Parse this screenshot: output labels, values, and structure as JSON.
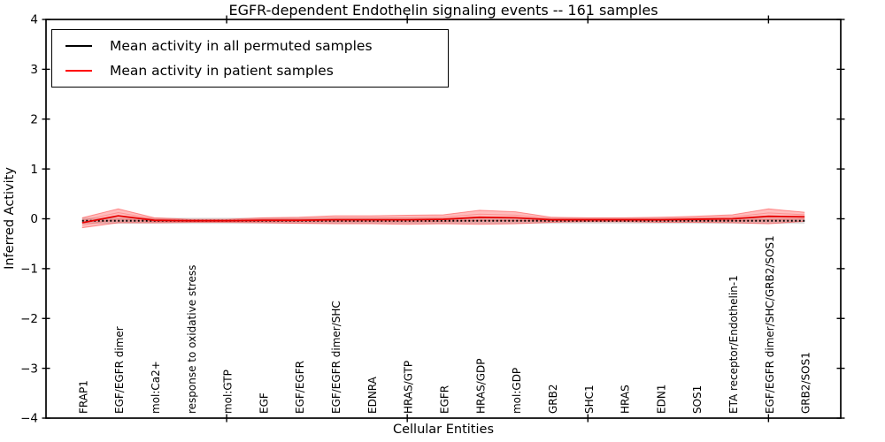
{
  "chart_data": {
    "type": "line",
    "title": "EGFR-dependent Endothelin signaling events -- 161 samples",
    "xlabel": "Cellular Entities",
    "ylabel": "Inferred Activity",
    "ylim": [
      -4,
      4
    ],
    "yticks": [
      -4,
      -3,
      -2,
      -1,
      0,
      1,
      2,
      3,
      4
    ],
    "xlim": [
      0,
      22
    ],
    "xticks": [
      5,
      10,
      15,
      20
    ],
    "grid": false,
    "legend_position": "upper left",
    "categories": [
      "FRAP1",
      "EGF/EGFR dimer",
      "mol:Ca2+",
      "response to oxidative stress",
      "mol:GTP",
      "EGF",
      "EGF/EGFR",
      "EGF/EGFR dimer/SHC",
      "EDNRA",
      "HRAS/GTP",
      "EGFR",
      "HRAS/GDP",
      "mol:GDP",
      "GRB2",
      "SHC1",
      "HRAS",
      "EDN1",
      "SOS1",
      "ETA receptor/Endothelin-1",
      "EGF/EGFR dimer/SHC/GRB2/SOS1",
      "GRB2/SOS1"
    ],
    "x": [
      1,
      2,
      3,
      4,
      5,
      6,
      7,
      8,
      9,
      10,
      11,
      12,
      13,
      14,
      15,
      16,
      17,
      18,
      19,
      20,
      21
    ],
    "series": [
      {
        "name": "Mean activity in all permuted samples",
        "color": "#000000",
        "line_style": "dotted",
        "band_color": "#aaaaaa",
        "values": [
          -0.04,
          -0.04,
          -0.04,
          -0.04,
          -0.04,
          -0.04,
          -0.04,
          -0.04,
          -0.04,
          -0.04,
          -0.04,
          -0.04,
          -0.04,
          -0.04,
          -0.04,
          -0.04,
          -0.04,
          -0.04,
          -0.04,
          -0.04,
          -0.04
        ],
        "band_halfwidth": [
          0.06,
          0.06,
          0.06,
          0.06,
          0.06,
          0.06,
          0.06,
          0.06,
          0.06,
          0.06,
          0.06,
          0.06,
          0.06,
          0.06,
          0.06,
          0.06,
          0.06,
          0.06,
          0.06,
          0.06,
          0.06
        ]
      },
      {
        "name": "Mean activity in patient samples",
        "color": "#e60000",
        "line_style": "solid",
        "band_color": "#ff3333",
        "values": [
          -0.08,
          0.06,
          -0.03,
          -0.04,
          -0.04,
          -0.03,
          -0.03,
          -0.02,
          -0.02,
          -0.02,
          -0.01,
          0.03,
          0.02,
          -0.02,
          -0.02,
          -0.02,
          -0.02,
          -0.01,
          0.0,
          0.05,
          0.04
        ],
        "band_halfwidth": [
          0.1,
          0.14,
          0.05,
          0.03,
          0.03,
          0.05,
          0.06,
          0.08,
          0.08,
          0.09,
          0.09,
          0.14,
          0.12,
          0.05,
          0.04,
          0.04,
          0.05,
          0.06,
          0.08,
          0.15,
          0.09
        ]
      }
    ]
  }
}
